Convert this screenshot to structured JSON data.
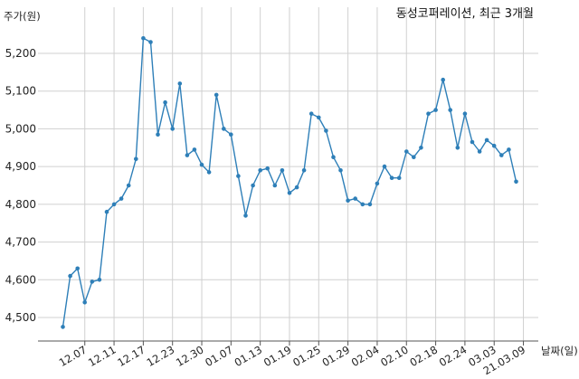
{
  "chart_data": {
    "type": "line",
    "title": "동성코퍼레이션, 최근 3개월",
    "ylabel": "주가(원)",
    "xlabel": "날짜(일)",
    "ylim": [
      4450,
      5250
    ],
    "yticks": [
      4500,
      4600,
      4700,
      4800,
      4900,
      5000,
      5100,
      5200
    ],
    "ytick_labels": [
      "4,500",
      "4,600",
      "4,700",
      "4,800",
      "4,900",
      "5,000",
      "5,100",
      "5,200"
    ],
    "xtick_labels": [
      "12.07",
      "12.11",
      "12.17",
      "12.23",
      "12.30",
      "01.07",
      "01.13",
      "01.19",
      "01.25",
      "01.29",
      "02.04",
      "02.10",
      "02.18",
      "02.24",
      "03.03",
      "21.03.09"
    ],
    "xtick_index": [
      3,
      7,
      11,
      15,
      19,
      23,
      27,
      31,
      35,
      39,
      43,
      47,
      51,
      55,
      59,
      63
    ],
    "grid": true,
    "line_color": "#2e7fb8",
    "series": [
      {
        "values": [
          4475,
          4610,
          4630,
          4540,
          4595,
          4600,
          4780,
          4800,
          4815,
          4850,
          4920,
          5240,
          5230,
          4985,
          5070,
          5000,
          5120,
          4930,
          4945,
          4905,
          4885,
          5090,
          5000,
          4985,
          4875,
          4770,
          4850,
          4890,
          4895,
          4850,
          4890,
          4830,
          4845,
          4890,
          5040,
          5030,
          4995,
          4925,
          4890,
          4810,
          4815,
          4800,
          4800,
          4855,
          4900,
          4870,
          4870,
          4940,
          4925,
          4950,
          5040,
          5050,
          5130,
          5050,
          4950,
          5040,
          4965,
          4940,
          4970,
          4955,
          4930,
          4945,
          4860
        ]
      }
    ]
  }
}
